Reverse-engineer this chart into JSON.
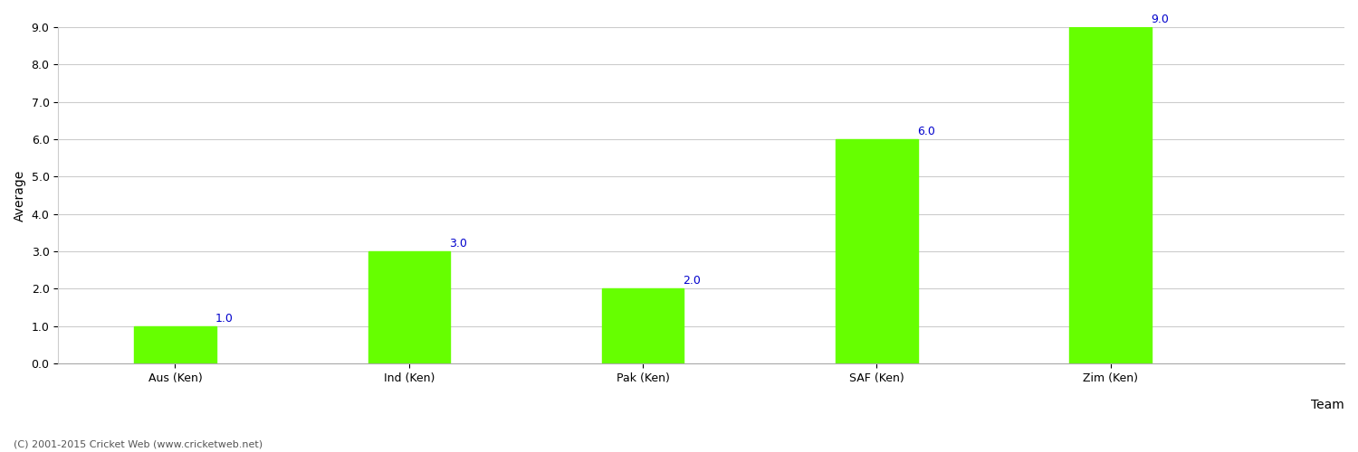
{
  "categories": [
    "Aus (Ken)",
    "Ind (Ken)",
    "Pak (Ken)",
    "SAF (Ken)",
    "Zim (Ken)"
  ],
  "values": [
    1.0,
    3.0,
    2.0,
    6.0,
    9.0
  ],
  "bar_color": "#66ff00",
  "bar_edge_color": "#66ff00",
  "value_label_color": "#0000cc",
  "xlabel": "Team",
  "ylabel": "Average",
  "ylim_min": 0.0,
  "ylim_max": 9.0,
  "yticks": [
    0.0,
    1.0,
    2.0,
    3.0,
    4.0,
    5.0,
    6.0,
    7.0,
    8.0,
    9.0
  ],
  "grid_color": "#cccccc",
  "background_color": "#ffffff",
  "footer_text": "(C) 2001-2015 Cricket Web (www.cricketweb.net)",
  "value_fontsize": 9,
  "axis_label_fontsize": 10,
  "tick_fontsize": 9,
  "footer_fontsize": 8,
  "bar_width": 0.35
}
